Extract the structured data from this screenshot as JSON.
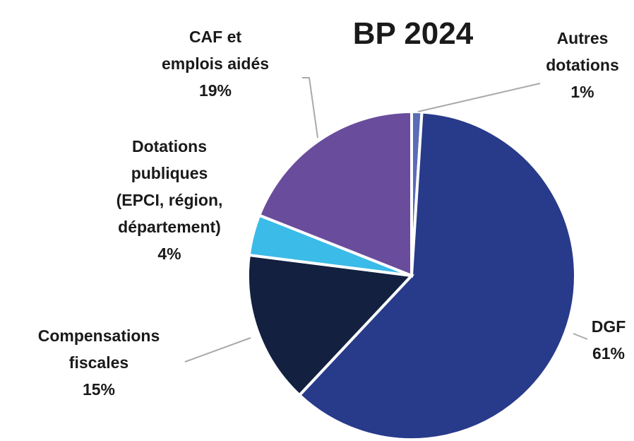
{
  "chart_data": {
    "type": "pie",
    "title": "BP 2024",
    "categories": [
      "Autres\ndotations",
      "DGF",
      "Compensations\nfiscales",
      "Dotations\npubliques\n(EPCI, région,\ndépartement)",
      "CAF et\nemplois aidés"
    ],
    "values": [
      1,
      61,
      15,
      4,
      19
    ],
    "value_labels": [
      "1%",
      "61%",
      "15%",
      "4%",
      "19%"
    ],
    "colors": [
      "#5a6db5",
      "#283a8a",
      "#13203f",
      "#3bbbe8",
      "#6a4c9c"
    ]
  }
}
